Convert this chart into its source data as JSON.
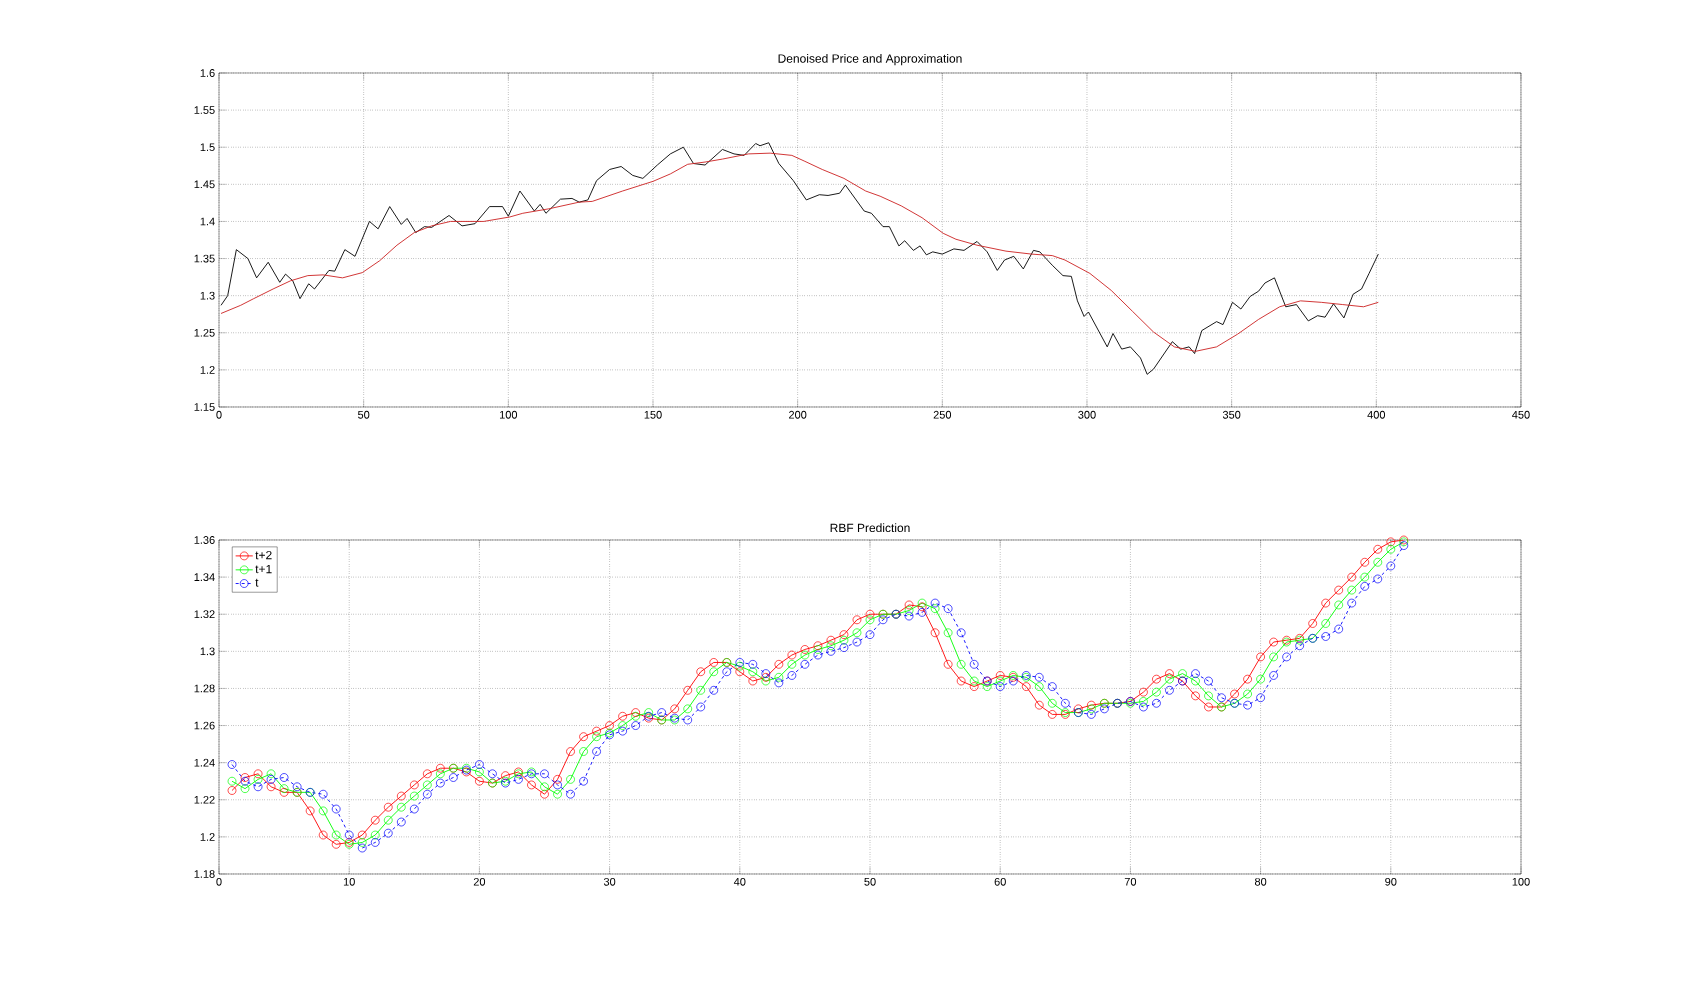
{
  "chart_data": [
    {
      "type": "line",
      "title": "Denoised Price and Approximation",
      "xlim": [
        0,
        450
      ],
      "ylim": [
        1.15,
        1.6
      ],
      "xticks": [
        0,
        50,
        100,
        150,
        200,
        250,
        300,
        350,
        400,
        450
      ],
      "yticks": [
        1.15,
        1.2,
        1.25,
        1.3,
        1.35,
        1.4,
        1.45,
        1.5,
        1.55,
        1.6
      ],
      "grid": true,
      "legend": false,
      "marker": "none",
      "series": [
        {
          "color": "#000000",
          "line_style": "solid",
          "x": [
            0.7,
            3,
            6,
            10,
            13,
            17,
            21,
            23,
            25.5,
            28,
            31,
            33,
            38,
            40,
            43.5,
            47,
            52,
            55,
            59,
            63,
            65,
            68,
            71,
            73.5,
            79.5,
            84,
            88.5,
            93.5,
            98,
            100,
            104,
            109,
            111,
            113,
            118,
            122,
            124.5,
            127.5,
            130.5,
            135,
            139,
            143,
            146.5,
            151.5,
            156,
            160.5,
            164,
            168,
            174,
            178,
            181.5,
            185.5,
            187,
            190,
            193.5,
            198.5,
            203,
            207.5,
            210.5,
            214.5,
            216.5,
            223,
            225.5,
            229.5,
            231.7,
            235,
            237,
            240,
            242.3,
            244.5,
            246.7,
            250,
            254,
            257.5,
            262,
            265.5,
            269,
            271.5,
            274.7,
            278,
            281.5,
            283.7,
            288,
            291.7,
            294.6,
            296.7,
            299,
            300.5,
            307,
            309,
            312,
            315,
            318.5,
            320.8,
            323,
            329.5,
            332.4,
            335.3,
            337.2,
            339.7,
            344.8,
            347,
            350.3,
            353.2,
            356.4,
            359.3,
            361.5,
            364.8,
            368.7,
            372.4,
            376.5,
            379.7,
            382.3,
            385.2,
            388.8,
            392,
            394.9,
            397.5,
            400.7
          ],
          "values": [
            1.287,
            1.3,
            1.362,
            1.35,
            1.324,
            1.345,
            1.318,
            1.329,
            1.32,
            1.296,
            1.316,
            1.309,
            1.334,
            1.333,
            1.362,
            1.353,
            1.4,
            1.39,
            1.42,
            1.396,
            1.404,
            1.385,
            1.393,
            1.392,
            1.408,
            1.394,
            1.397,
            1.42,
            1.42,
            1.407,
            1.441,
            1.414,
            1.423,
            1.411,
            1.43,
            1.431,
            1.426,
            1.429,
            1.455,
            1.47,
            1.474,
            1.462,
            1.458,
            1.476,
            1.491,
            1.5,
            1.478,
            1.476,
            1.497,
            1.491,
            1.489,
            1.505,
            1.502,
            1.506,
            1.478,
            1.455,
            1.429,
            1.436,
            1.435,
            1.438,
            1.449,
            1.414,
            1.411,
            1.393,
            1.393,
            1.367,
            1.374,
            1.361,
            1.367,
            1.355,
            1.359,
            1.356,
            1.363,
            1.361,
            1.373,
            1.359,
            1.334,
            1.348,
            1.353,
            1.336,
            1.361,
            1.359,
            1.341,
            1.327,
            1.326,
            1.293,
            1.272,
            1.278,
            1.231,
            1.249,
            1.228,
            1.231,
            1.216,
            1.194,
            1.201,
            1.238,
            1.228,
            1.231,
            1.222,
            1.253,
            1.265,
            1.261,
            1.291,
            1.282,
            1.299,
            1.306,
            1.317,
            1.324,
            1.285,
            1.288,
            1.266,
            1.273,
            1.271,
            1.289,
            1.27,
            1.302,
            1.309,
            1.33,
            1.356
          ]
        },
        {
          "color": "#cc2020",
          "line_style": "solid",
          "x": [
            0.7,
            7.5,
            12,
            18.7,
            24.7,
            30.7,
            36,
            42.7,
            49.5,
            55.5,
            61.5,
            67.5,
            73.5,
            80,
            91.5,
            100.5,
            105,
            114,
            124.5,
            129,
            139.5,
            150,
            156,
            162,
            168,
            174,
            183,
            190.5,
            198,
            202.5,
            208.5,
            216,
            223.5,
            228.5,
            235.8,
            243,
            250.3,
            254.7,
            262,
            272,
            280.8,
            288,
            292.4,
            301,
            308.4,
            315.7,
            323,
            330.2,
            337.5,
            344.8,
            352,
            359.3,
            366.6,
            373.8,
            381,
            388.4,
            395.6,
            400.7
          ],
          "values": [
            1.276,
            1.287,
            1.296,
            1.309,
            1.32,
            1.327,
            1.328,
            1.324,
            1.331,
            1.347,
            1.368,
            1.385,
            1.394,
            1.4,
            1.4,
            1.406,
            1.411,
            1.417,
            1.426,
            1.427,
            1.441,
            1.454,
            1.464,
            1.477,
            1.48,
            1.484,
            1.491,
            1.492,
            1.489,
            1.481,
            1.47,
            1.458,
            1.441,
            1.434,
            1.421,
            1.405,
            1.384,
            1.376,
            1.368,
            1.36,
            1.356,
            1.354,
            1.348,
            1.33,
            1.307,
            1.279,
            1.251,
            1.231,
            1.225,
            1.231,
            1.248,
            1.268,
            1.285,
            1.293,
            1.291,
            1.288,
            1.285,
            1.291
          ]
        }
      ]
    },
    {
      "type": "line",
      "title": "RBF Prediction",
      "xlim": [
        0,
        100
      ],
      "ylim": [
        1.18,
        1.36
      ],
      "xticks": [
        0,
        10,
        20,
        30,
        40,
        50,
        60,
        70,
        80,
        90,
        100
      ],
      "yticks": [
        1.18,
        1.2,
        1.22,
        1.24,
        1.26,
        1.28,
        1.3,
        1.32,
        1.34,
        1.36
      ],
      "grid": true,
      "legend": "top left",
      "marker": "circle",
      "x": [
        1,
        2,
        3,
        4,
        5,
        6,
        7,
        8,
        9,
        10,
        11,
        12,
        13,
        14,
        15,
        16,
        17,
        18,
        19,
        20,
        21,
        22,
        23,
        24,
        25,
        26,
        27,
        28,
        29,
        30,
        31,
        32,
        33,
        34,
        35,
        36,
        37,
        38,
        39,
        40,
        41,
        42,
        43,
        44,
        45,
        46,
        47,
        48,
        49,
        50,
        51,
        52,
        53,
        54,
        55,
        56,
        57,
        58,
        59,
        60,
        61,
        62,
        63,
        64,
        65,
        66,
        67,
        68,
        69,
        70,
        71,
        72,
        73,
        74,
        75,
        76,
        77,
        78,
        79,
        80,
        81,
        82,
        83,
        84,
        85,
        86,
        87,
        88,
        89,
        90,
        91
      ],
      "series": [
        {
          "name": "t+2",
          "color": "#ff0000",
          "line_style": "solid",
          "values": [
            1.225,
            1.232,
            1.234,
            1.227,
            1.224,
            1.224,
            1.214,
            1.201,
            1.196,
            1.197,
            1.201,
            1.209,
            1.216,
            1.222,
            1.228,
            1.234,
            1.237,
            1.237,
            1.235,
            1.23,
            1.229,
            1.233,
            1.235,
            1.228,
            1.223,
            1.231,
            1.246,
            1.254,
            1.257,
            1.26,
            1.265,
            1.267,
            1.264,
            1.263,
            1.269,
            1.279,
            1.289,
            1.294,
            1.294,
            1.289,
            1.284,
            1.286,
            1.293,
            1.298,
            1.301,
            1.303,
            1.306,
            1.309,
            1.317,
            1.32,
            1.32,
            1.32,
            1.325,
            1.324,
            1.31,
            1.293,
            1.284,
            1.281,
            1.284,
            1.287,
            1.286,
            1.281,
            1.271,
            1.266,
            1.266,
            1.269,
            1.271,
            1.272,
            1.272,
            1.273,
            1.278,
            1.285,
            1.288,
            1.284,
            1.276,
            1.27,
            1.27,
            1.277,
            1.285,
            1.297,
            1.305,
            1.306,
            1.307,
            1.315,
            1.326,
            1.333,
            1.34,
            1.348,
            1.355,
            1.359,
            1.36
          ]
        },
        {
          "name": "t+1",
          "color": "#00ff00",
          "line_style": "solid",
          "values": [
            1.23,
            1.226,
            1.231,
            1.234,
            1.226,
            1.224,
            1.224,
            1.214,
            1.201,
            1.196,
            1.197,
            1.201,
            1.209,
            1.216,
            1.222,
            1.228,
            1.234,
            1.237,
            1.237,
            1.235,
            1.229,
            1.23,
            1.234,
            1.235,
            1.227,
            1.223,
            1.231,
            1.246,
            1.254,
            1.256,
            1.26,
            1.265,
            1.267,
            1.263,
            1.263,
            1.269,
            1.279,
            1.289,
            1.294,
            1.292,
            1.289,
            1.284,
            1.286,
            1.293,
            1.298,
            1.301,
            1.303,
            1.306,
            1.31,
            1.317,
            1.32,
            1.32,
            1.322,
            1.326,
            1.323,
            1.31,
            1.293,
            1.284,
            1.281,
            1.284,
            1.287,
            1.286,
            1.281,
            1.272,
            1.267,
            1.267,
            1.269,
            1.272,
            1.272,
            1.272,
            1.273,
            1.278,
            1.285,
            1.288,
            1.284,
            1.276,
            1.27,
            1.272,
            1.277,
            1.285,
            1.297,
            1.305,
            1.306,
            1.307,
            1.315,
            1.325,
            1.333,
            1.34,
            1.348,
            1.355,
            1.359
          ]
        },
        {
          "name": "t",
          "color": "#0000ff",
          "line_style": "dashed",
          "values": [
            1.239,
            1.23,
            1.227,
            1.231,
            1.232,
            1.227,
            1.224,
            1.223,
            1.215,
            1.201,
            1.194,
            1.197,
            1.202,
            1.208,
            1.215,
            1.223,
            1.229,
            1.232,
            1.236,
            1.239,
            1.234,
            1.229,
            1.231,
            1.234,
            1.234,
            1.228,
            1.223,
            1.23,
            1.246,
            1.255,
            1.257,
            1.26,
            1.265,
            1.267,
            1.264,
            1.263,
            1.27,
            1.279,
            1.289,
            1.294,
            1.293,
            1.288,
            1.283,
            1.287,
            1.293,
            1.298,
            1.3,
            1.302,
            1.305,
            1.309,
            1.317,
            1.32,
            1.319,
            1.321,
            1.326,
            1.323,
            1.31,
            1.293,
            1.284,
            1.281,
            1.284,
            1.287,
            1.286,
            1.281,
            1.272,
            1.267,
            1.266,
            1.269,
            1.272,
            1.273,
            1.27,
            1.272,
            1.279,
            1.284,
            1.288,
            1.284,
            1.275,
            1.272,
            1.271,
            1.275,
            1.287,
            1.297,
            1.303,
            1.307,
            1.308,
            1.312,
            1.326,
            1.335,
            1.339,
            1.346,
            1.357
          ]
        }
      ]
    }
  ]
}
